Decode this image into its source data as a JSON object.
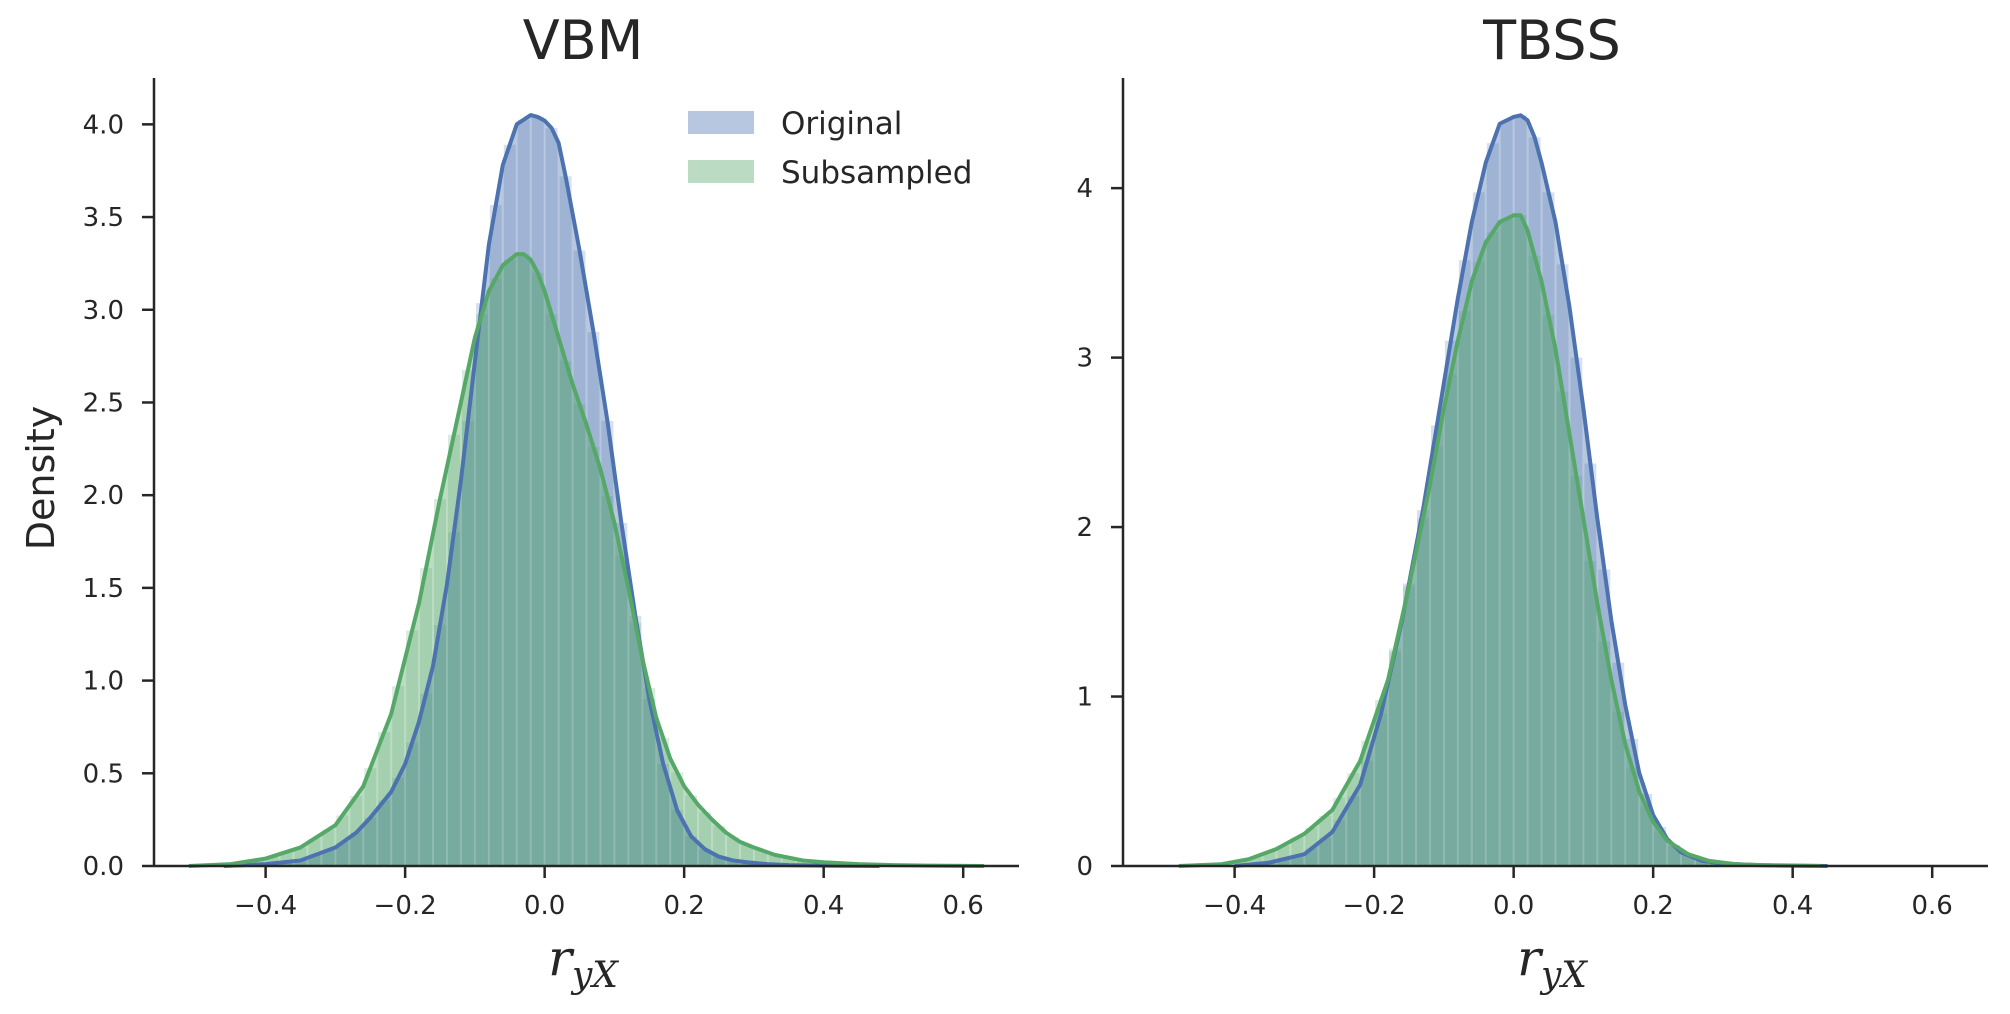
{
  "chart_data": [
    {
      "type": "area",
      "title": "VBM",
      "xlabel": "r",
      "xlabel_subscript": "yX",
      "ylabel": "Density",
      "xlim": [
        -0.56,
        0.68
      ],
      "ylim": [
        0,
        4.25
      ],
      "x_ticks": [
        -0.4,
        -0.2,
        0.0,
        0.2,
        0.4,
        0.6
      ],
      "x_tick_labels": [
        "−0.4",
        "−0.2",
        "0.0",
        "0.2",
        "0.4",
        "0.6"
      ],
      "y_ticks": [
        0.0,
        0.5,
        1.0,
        1.5,
        2.0,
        2.5,
        3.0,
        3.5,
        4.0
      ],
      "y_tick_labels": [
        "0.0",
        "0.5",
        "1.0",
        "1.5",
        "2.0",
        "2.5",
        "3.0",
        "3.5",
        "4.0"
      ],
      "grid": false,
      "legend": "top-right",
      "series": [
        {
          "name": "Original",
          "color": "#4c72b0",
          "x": [
            -0.46,
            -0.4,
            -0.35,
            -0.3,
            -0.27,
            -0.25,
            -0.22,
            -0.2,
            -0.18,
            -0.16,
            -0.14,
            -0.12,
            -0.1,
            -0.08,
            -0.06,
            -0.04,
            -0.02,
            -0.01,
            0.0,
            0.01,
            0.02,
            0.03,
            0.05,
            0.07,
            0.09,
            0.11,
            0.13,
            0.15,
            0.17,
            0.19,
            0.21,
            0.23,
            0.25,
            0.27,
            0.29,
            0.32,
            0.35,
            0.4,
            0.48
          ],
          "y": [
            0.0,
            0.01,
            0.03,
            0.1,
            0.18,
            0.26,
            0.4,
            0.55,
            0.78,
            1.08,
            1.52,
            2.08,
            2.72,
            3.35,
            3.78,
            4.0,
            4.05,
            4.04,
            4.02,
            3.98,
            3.9,
            3.72,
            3.32,
            2.88,
            2.4,
            1.85,
            1.35,
            0.9,
            0.55,
            0.3,
            0.16,
            0.09,
            0.05,
            0.03,
            0.02,
            0.01,
            0.005,
            0.002,
            0.0
          ]
        },
        {
          "name": "Subsampled",
          "color": "#55a868",
          "x": [
            -0.51,
            -0.45,
            -0.4,
            -0.35,
            -0.3,
            -0.26,
            -0.22,
            -0.18,
            -0.15,
            -0.12,
            -0.1,
            -0.08,
            -0.06,
            -0.04,
            -0.03,
            -0.02,
            -0.01,
            0.0,
            0.02,
            0.04,
            0.06,
            0.08,
            0.1,
            0.12,
            0.14,
            0.16,
            0.18,
            0.2,
            0.22,
            0.24,
            0.26,
            0.28,
            0.3,
            0.33,
            0.37,
            0.4,
            0.45,
            0.5,
            0.55,
            0.63
          ],
          "y": [
            0.0,
            0.01,
            0.04,
            0.1,
            0.22,
            0.43,
            0.82,
            1.42,
            1.98,
            2.5,
            2.85,
            3.1,
            3.24,
            3.3,
            3.3,
            3.27,
            3.2,
            3.1,
            2.85,
            2.6,
            2.38,
            2.14,
            1.85,
            1.5,
            1.12,
            0.8,
            0.58,
            0.43,
            0.33,
            0.25,
            0.18,
            0.13,
            0.1,
            0.06,
            0.03,
            0.02,
            0.01,
            0.005,
            0.002,
            0.0
          ]
        }
      ]
    },
    {
      "type": "area",
      "title": "TBSS",
      "xlabel": "r",
      "xlabel_subscript": "yX",
      "ylabel": "",
      "xlim": [
        -0.56,
        0.68
      ],
      "ylim": [
        0,
        4.65
      ],
      "x_ticks": [
        -0.4,
        -0.2,
        0.0,
        0.2,
        0.4,
        0.6
      ],
      "x_tick_labels": [
        "−0.4",
        "−0.2",
        "0.0",
        "0.2",
        "0.4",
        "0.6"
      ],
      "y_ticks": [
        0,
        1,
        2,
        3,
        4
      ],
      "y_tick_labels": [
        "0",
        "1",
        "2",
        "3",
        "4"
      ],
      "grid": false,
      "legend": "none",
      "series": [
        {
          "name": "Original",
          "color": "#4c72b0",
          "x": [
            -0.4,
            -0.35,
            -0.3,
            -0.26,
            -0.22,
            -0.19,
            -0.16,
            -0.13,
            -0.1,
            -0.08,
            -0.06,
            -0.04,
            -0.02,
            0.0,
            0.01,
            0.02,
            0.03,
            0.04,
            0.06,
            0.08,
            0.1,
            0.12,
            0.14,
            0.16,
            0.18,
            0.2,
            0.22,
            0.24,
            0.27,
            0.3,
            0.35,
            0.45
          ],
          "y": [
            0.0,
            0.02,
            0.07,
            0.2,
            0.48,
            0.9,
            1.45,
            2.1,
            2.85,
            3.35,
            3.8,
            4.15,
            4.38,
            4.42,
            4.43,
            4.4,
            4.3,
            4.15,
            3.8,
            3.3,
            2.7,
            2.05,
            1.45,
            0.95,
            0.55,
            0.3,
            0.16,
            0.08,
            0.03,
            0.015,
            0.005,
            0.0
          ]
        },
        {
          "name": "Subsampled",
          "color": "#55a868",
          "x": [
            -0.48,
            -0.42,
            -0.38,
            -0.34,
            -0.3,
            -0.26,
            -0.22,
            -0.18,
            -0.15,
            -0.12,
            -0.1,
            -0.08,
            -0.06,
            -0.04,
            -0.02,
            0.0,
            0.01,
            0.02,
            0.04,
            0.06,
            0.08,
            0.1,
            0.12,
            0.14,
            0.16,
            0.18,
            0.2,
            0.22,
            0.25,
            0.28,
            0.32,
            0.38,
            0.44
          ],
          "y": [
            0.0,
            0.01,
            0.04,
            0.1,
            0.19,
            0.33,
            0.62,
            1.1,
            1.65,
            2.25,
            2.7,
            3.1,
            3.45,
            3.68,
            3.8,
            3.84,
            3.84,
            3.75,
            3.45,
            3.05,
            2.55,
            2.05,
            1.55,
            1.1,
            0.72,
            0.44,
            0.26,
            0.15,
            0.07,
            0.03,
            0.01,
            0.002,
            0.0
          ]
        }
      ]
    }
  ]
}
